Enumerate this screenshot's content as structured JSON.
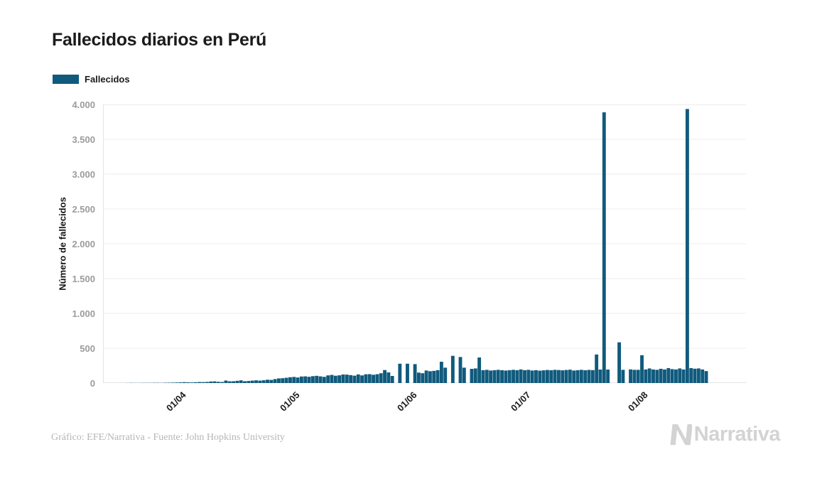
{
  "page": {
    "background": "#ffffff"
  },
  "header": {
    "title": "Fallecidos diarios en Perú"
  },
  "legend": {
    "items": [
      {
        "label": "Fallecidos",
        "color": "#105a7d"
      }
    ]
  },
  "chart_data": {
    "type": "bar",
    "title": "Fallecidos diarios en Perú",
    "series_name": "Fallecidos",
    "bar_color": "#105a7d",
    "xlabel": "",
    "ylabel": "Número de fallecidos",
    "ylim": [
      0,
      4000
    ],
    "y_tick_interval": 500,
    "y_tick_labels": [
      "0",
      "500",
      "1.000",
      "1.500",
      "2.000",
      "2.500",
      "3.000",
      "3.500",
      "4.000"
    ],
    "grid": "horizontal",
    "grid_color": "#ececec",
    "axis_line_color": "#e3e3e3",
    "legend_position": "top-left",
    "start_date": "2020-03-13",
    "end_date": "2020-08-19",
    "axis_total_days": 170,
    "x_ticks": [
      {
        "label": "01/04",
        "day_index": 19
      },
      {
        "label": "01/05",
        "day_index": 49
      },
      {
        "label": "01/06",
        "day_index": 80
      },
      {
        "label": "01/07",
        "day_index": 110
      },
      {
        "label": "01/08",
        "day_index": 141
      }
    ],
    "values_by_month": {
      "2020-03 (from day 13)": [
        0,
        0,
        0,
        0,
        0,
        0,
        1,
        2,
        1,
        1,
        2,
        2,
        2,
        3,
        3,
        2,
        4,
        5,
        6
      ],
      "2020-04": [
        8,
        10,
        13,
        11,
        9,
        12,
        15,
        14,
        16,
        22,
        24,
        18,
        15,
        36,
        25,
        26,
        32,
        39,
        26,
        30,
        35,
        39,
        35,
        40,
        48,
        45,
        57,
        67,
        70,
        76
      ],
      "2020-05": [
        84,
        88,
        80,
        94,
        96,
        90,
        99,
        104,
        96,
        89,
        110,
        117,
        105,
        111,
        123,
        121,
        114,
        106,
        124,
        110,
        126,
        128,
        119,
        127,
        141,
        187,
        153,
        102,
        0,
        278,
        0
      ],
      "2020-06": [
        278,
        0,
        272,
        150,
        141,
        180,
        170,
        175,
        185,
        306,
        221,
        0,
        391,
        0,
        374,
        221,
        0,
        204,
        210,
        367,
        185,
        190,
        180,
        185,
        190,
        185,
        180,
        185,
        190,
        185
      ],
      "2020-07": [
        196,
        185,
        190,
        180,
        185,
        178,
        183,
        188,
        184,
        190,
        187,
        183,
        188,
        192,
        180,
        185,
        190,
        184,
        189,
        186,
        410,
        194,
        3887,
        194,
        0,
        0,
        585,
        190,
        0,
        196,
        190
      ],
      "2020-08 (through day 19)": [
        190,
        400,
        195,
        210,
        195,
        190,
        205,
        195,
        215,
        200,
        195,
        210,
        195,
        3935,
        215,
        206,
        210,
        195,
        172
      ]
    },
    "notable_points": [
      {
        "date": "2020-07-23",
        "value": 3887
      },
      {
        "date": "2020-08-14",
        "value": 3935
      }
    ]
  },
  "footer": {
    "credit": "Gráfico: EFE/Narrativa - Fuente: John Hopkins University",
    "logo_text": "Narrativa"
  }
}
